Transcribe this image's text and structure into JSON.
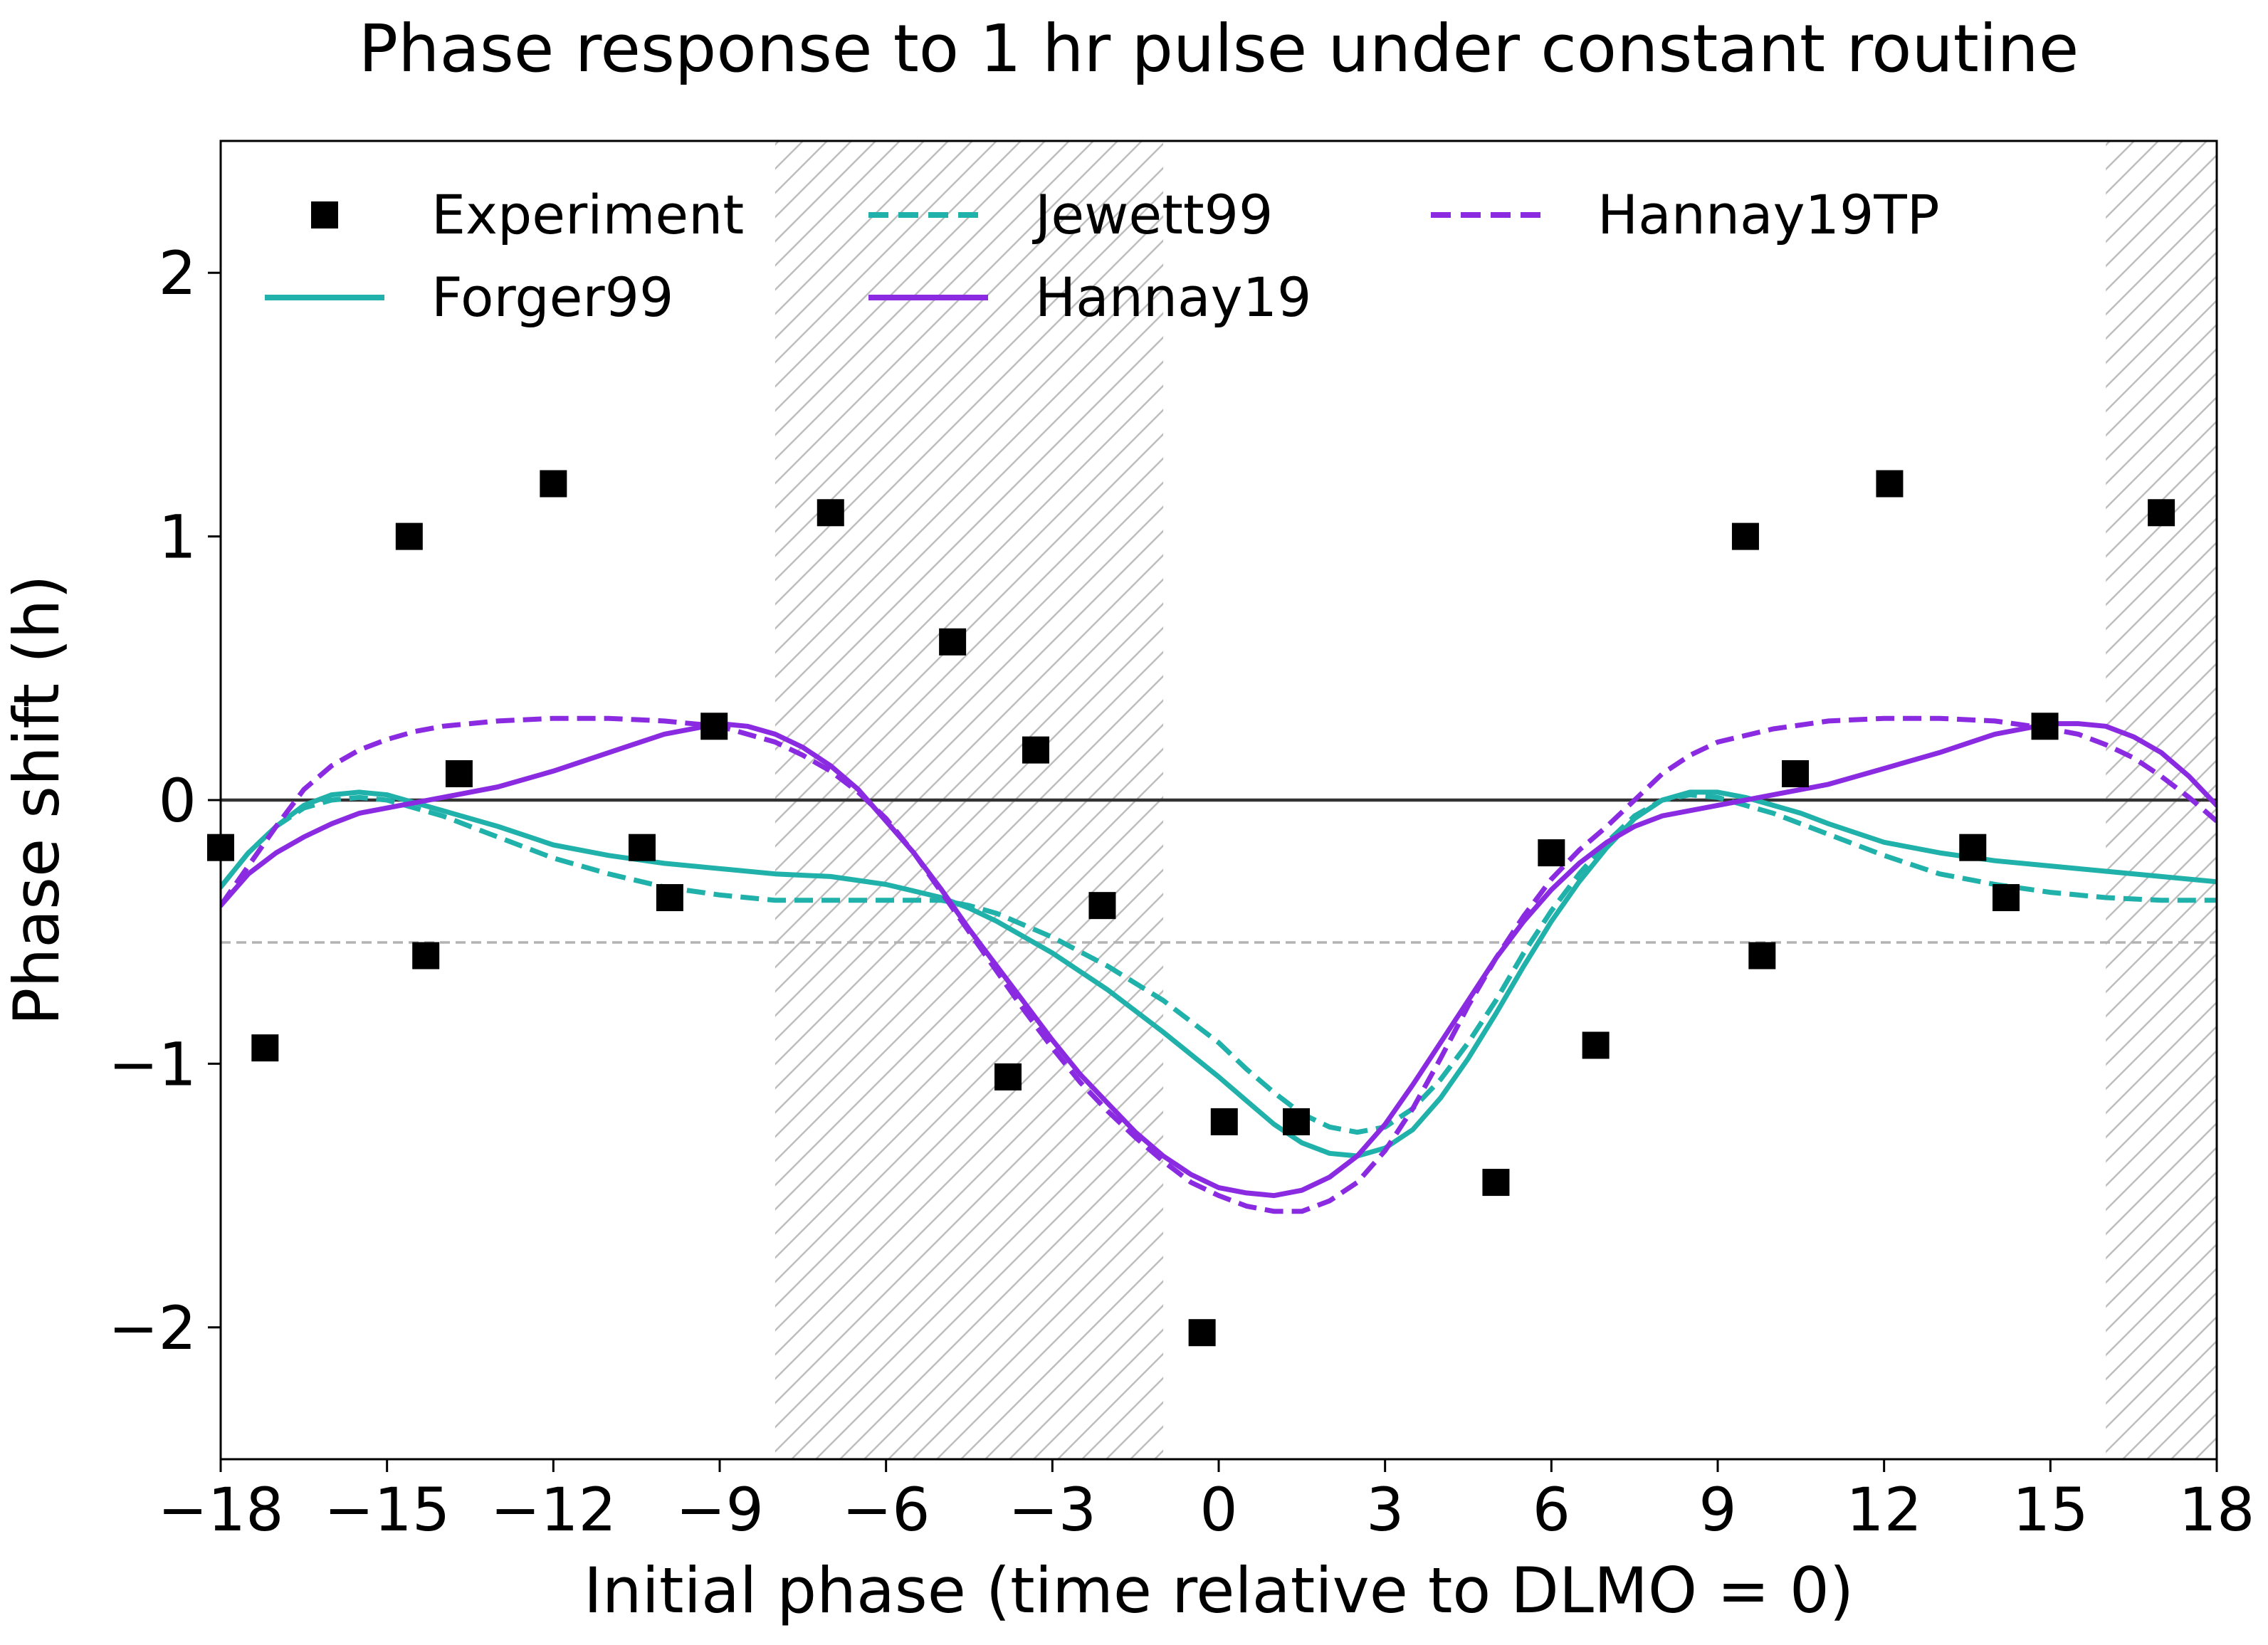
{
  "chart_data": {
    "type": "scatter",
    "title": "Phase response to 1 hr pulse under constant routine",
    "xlabel": "Initial phase (time relative to DLMO = 0)",
    "ylabel": "Phase shift (h)",
    "xlim": [
      -18,
      18
    ],
    "ylim": [
      -2.5,
      2.5
    ],
    "xticks": [
      -18,
      -15,
      -12,
      -9,
      -6,
      -3,
      0,
      3,
      6,
      9,
      12,
      15,
      18
    ],
    "yticks": [
      -2,
      -1,
      0,
      1,
      2
    ],
    "x_tick_labels": [
      "−18",
      "−15",
      "−12",
      "−9",
      "−6",
      "−3",
      "0",
      "3",
      "6",
      "9",
      "12",
      "15",
      "18"
    ],
    "y_tick_labels": [
      "−2",
      "−1",
      "0",
      "1",
      "2"
    ],
    "grid": false,
    "legend_position": "top",
    "reference_lines": [
      {
        "y": 0,
        "color": "#333333",
        "style": "solid"
      },
      {
        "y": -0.54,
        "color": "#b3b3b3",
        "style": "dashed"
      }
    ],
    "shaded_regions": [
      {
        "x0": -8,
        "x1": -1,
        "pattern": "hatch"
      },
      {
        "x0": 16,
        "x1": 18,
        "pattern": "hatch"
      }
    ],
    "series": [
      {
        "name": "Experiment",
        "kind": "scatter",
        "color": "#000000",
        "marker": "square",
        "points": [
          [
            -18.0,
            -0.18
          ],
          [
            -17.2,
            -0.94
          ],
          [
            -14.6,
            1.0
          ],
          [
            -14.3,
            -0.59
          ],
          [
            -13.7,
            0.1
          ],
          [
            -12.0,
            1.2
          ],
          [
            -10.4,
            -0.18
          ],
          [
            -9.9,
            -0.37
          ],
          [
            -9.1,
            0.28
          ],
          [
            -7.0,
            1.09
          ],
          [
            -4.8,
            0.6
          ],
          [
            -3.8,
            -1.05
          ],
          [
            -3.3,
            0.19
          ],
          [
            -2.1,
            -0.4
          ],
          [
            -0.3,
            -2.02
          ],
          [
            0.1,
            -1.22
          ],
          [
            1.4,
            -1.22
          ],
          [
            5.0,
            -1.45
          ],
          [
            6.0,
            -0.2
          ],
          [
            6.8,
            -0.93
          ],
          [
            9.5,
            1.0
          ],
          [
            9.8,
            -0.59
          ],
          [
            10.4,
            0.1
          ],
          [
            12.1,
            1.2
          ],
          [
            13.6,
            -0.18
          ],
          [
            14.2,
            -0.37
          ],
          [
            14.9,
            0.28
          ],
          [
            17.0,
            1.09
          ]
        ]
      },
      {
        "name": "Forger99",
        "kind": "line",
        "color": "#20b2aa",
        "dash": "solid",
        "points": [
          [
            -18,
            -0.33
          ],
          [
            -17.5,
            -0.2
          ],
          [
            -17,
            -0.1
          ],
          [
            -16.5,
            -0.02
          ],
          [
            -16,
            0.02
          ],
          [
            -15.5,
            0.03
          ],
          [
            -15,
            0.02
          ],
          [
            -14.5,
            -0.01
          ],
          [
            -14,
            -0.04
          ],
          [
            -13,
            -0.1
          ],
          [
            -12,
            -0.17
          ],
          [
            -11,
            -0.21
          ],
          [
            -10,
            -0.24
          ],
          [
            -9,
            -0.26
          ],
          [
            -8,
            -0.28
          ],
          [
            -7,
            -0.29
          ],
          [
            -6,
            -0.32
          ],
          [
            -5,
            -0.37
          ],
          [
            -4.5,
            -0.41
          ],
          [
            -4,
            -0.46
          ],
          [
            -3,
            -0.58
          ],
          [
            -2,
            -0.72
          ],
          [
            -1,
            -0.88
          ],
          [
            0,
            -1.05
          ],
          [
            0.5,
            -1.14
          ],
          [
            1,
            -1.23
          ],
          [
            1.5,
            -1.3
          ],
          [
            2,
            -1.34
          ],
          [
            2.5,
            -1.35
          ],
          [
            3,
            -1.32
          ],
          [
            3.5,
            -1.25
          ],
          [
            4,
            -1.13
          ],
          [
            4.5,
            -0.98
          ],
          [
            5,
            -0.81
          ],
          [
            5.5,
            -0.63
          ],
          [
            6,
            -0.46
          ],
          [
            6.5,
            -0.31
          ],
          [
            7,
            -0.18
          ],
          [
            7.5,
            -0.07
          ],
          [
            8,
            0.0
          ],
          [
            8.5,
            0.03
          ],
          [
            9,
            0.03
          ],
          [
            9.5,
            0.01
          ],
          [
            10,
            -0.02
          ],
          [
            10.5,
            -0.05
          ],
          [
            11,
            -0.09
          ],
          [
            12,
            -0.16
          ],
          [
            13,
            -0.2
          ],
          [
            14,
            -0.23
          ],
          [
            15,
            -0.25
          ],
          [
            16,
            -0.27
          ],
          [
            17,
            -0.29
          ],
          [
            18,
            -0.31
          ]
        ]
      },
      {
        "name": "Jewett99",
        "kind": "line",
        "color": "#20b2aa",
        "dash": "dashed",
        "points": [
          [
            -18,
            -0.33
          ],
          [
            -17.5,
            -0.2
          ],
          [
            -17,
            -0.1
          ],
          [
            -16.5,
            -0.03
          ],
          [
            -16,
            0.0
          ],
          [
            -15.5,
            0.01
          ],
          [
            -15,
            0.0
          ],
          [
            -14.5,
            -0.03
          ],
          [
            -14,
            -0.06
          ],
          [
            -13,
            -0.14
          ],
          [
            -12,
            -0.22
          ],
          [
            -11,
            -0.28
          ],
          [
            -10,
            -0.33
          ],
          [
            -9,
            -0.36
          ],
          [
            -8,
            -0.38
          ],
          [
            -7,
            -0.38
          ],
          [
            -6,
            -0.38
          ],
          [
            -5,
            -0.38
          ],
          [
            -4.5,
            -0.4
          ],
          [
            -4,
            -0.43
          ],
          [
            -3,
            -0.52
          ],
          [
            -2,
            -0.63
          ],
          [
            -1,
            -0.76
          ],
          [
            0,
            -0.92
          ],
          [
            0.5,
            -1.02
          ],
          [
            1,
            -1.11
          ],
          [
            1.5,
            -1.19
          ],
          [
            2,
            -1.24
          ],
          [
            2.5,
            -1.26
          ],
          [
            3,
            -1.24
          ],
          [
            3.5,
            -1.17
          ],
          [
            4,
            -1.06
          ],
          [
            4.5,
            -0.92
          ],
          [
            5,
            -0.76
          ],
          [
            5.5,
            -0.58
          ],
          [
            6,
            -0.42
          ],
          [
            6.5,
            -0.28
          ],
          [
            7,
            -0.16
          ],
          [
            7.5,
            -0.06
          ],
          [
            8,
            0.0
          ],
          [
            8.5,
            0.02
          ],
          [
            9,
            0.01
          ],
          [
            9.5,
            -0.02
          ],
          [
            10,
            -0.05
          ],
          [
            10.5,
            -0.09
          ],
          [
            11,
            -0.13
          ],
          [
            12,
            -0.21
          ],
          [
            13,
            -0.28
          ],
          [
            14,
            -0.32
          ],
          [
            15,
            -0.35
          ],
          [
            16,
            -0.37
          ],
          [
            17,
            -0.38
          ],
          [
            18,
            -0.38
          ]
        ]
      },
      {
        "name": "Hannay19",
        "kind": "line",
        "color": "#8a2be2",
        "dash": "solid",
        "points": [
          [
            -18,
            -0.4
          ],
          [
            -17.5,
            -0.28
          ],
          [
            -17,
            -0.2
          ],
          [
            -16.5,
            -0.14
          ],
          [
            -16,
            -0.09
          ],
          [
            -15.5,
            -0.05
          ],
          [
            -15,
            -0.03
          ],
          [
            -14.5,
            -0.01
          ],
          [
            -14,
            0.01
          ],
          [
            -13,
            0.05
          ],
          [
            -12,
            0.11
          ],
          [
            -11,
            0.18
          ],
          [
            -10,
            0.25
          ],
          [
            -9,
            0.29
          ],
          [
            -8.5,
            0.28
          ],
          [
            -8,
            0.25
          ],
          [
            -7.5,
            0.2
          ],
          [
            -7,
            0.13
          ],
          [
            -6.5,
            0.04
          ],
          [
            -6,
            -0.08
          ],
          [
            -5.5,
            -0.2
          ],
          [
            -5,
            -0.34
          ],
          [
            -4.5,
            -0.49
          ],
          [
            -4,
            -0.63
          ],
          [
            -3.5,
            -0.77
          ],
          [
            -3,
            -0.91
          ],
          [
            -2.5,
            -1.04
          ],
          [
            -2,
            -1.15
          ],
          [
            -1.5,
            -1.26
          ],
          [
            -1,
            -1.35
          ],
          [
            -0.5,
            -1.42
          ],
          [
            0,
            -1.47
          ],
          [
            0.5,
            -1.49
          ],
          [
            1,
            -1.5
          ],
          [
            1.5,
            -1.48
          ],
          [
            2,
            -1.43
          ],
          [
            2.5,
            -1.35
          ],
          [
            3,
            -1.23
          ],
          [
            3.5,
            -1.08
          ],
          [
            4,
            -0.92
          ],
          [
            4.5,
            -0.76
          ],
          [
            5,
            -0.6
          ],
          [
            5.5,
            -0.46
          ],
          [
            6,
            -0.34
          ],
          [
            6.5,
            -0.24
          ],
          [
            7,
            -0.16
          ],
          [
            7.5,
            -0.1
          ],
          [
            8,
            -0.06
          ],
          [
            8.5,
            -0.04
          ],
          [
            9,
            -0.02
          ],
          [
            10,
            0.02
          ],
          [
            11,
            0.06
          ],
          [
            12,
            0.12
          ],
          [
            13,
            0.18
          ],
          [
            14,
            0.25
          ],
          [
            15,
            0.29
          ],
          [
            15.5,
            0.29
          ],
          [
            16,
            0.28
          ],
          [
            16.5,
            0.24
          ],
          [
            17,
            0.18
          ],
          [
            17.5,
            0.09
          ],
          [
            18,
            -0.02
          ]
        ]
      },
      {
        "name": "Hannay19TP",
        "kind": "line",
        "color": "#8a2be2",
        "dash": "dashed",
        "points": [
          [
            -18,
            -0.4
          ],
          [
            -17.5,
            -0.25
          ],
          [
            -17,
            -0.1
          ],
          [
            -16.5,
            0.04
          ],
          [
            -16,
            0.13
          ],
          [
            -15.5,
            0.19
          ],
          [
            -15,
            0.23
          ],
          [
            -14.5,
            0.26
          ],
          [
            -14,
            0.28
          ],
          [
            -13,
            0.3
          ],
          [
            -12,
            0.31
          ],
          [
            -11,
            0.31
          ],
          [
            -10,
            0.3
          ],
          [
            -9,
            0.28
          ],
          [
            -8.5,
            0.25
          ],
          [
            -8,
            0.22
          ],
          [
            -7.5,
            0.17
          ],
          [
            -7,
            0.11
          ],
          [
            -6.5,
            0.03
          ],
          [
            -6,
            -0.07
          ],
          [
            -5.5,
            -0.2
          ],
          [
            -5,
            -0.35
          ],
          [
            -4.5,
            -0.5
          ],
          [
            -4,
            -0.65
          ],
          [
            -3.5,
            -0.8
          ],
          [
            -3,
            -0.94
          ],
          [
            -2.5,
            -1.07
          ],
          [
            -2,
            -1.18
          ],
          [
            -1.5,
            -1.28
          ],
          [
            -1,
            -1.37
          ],
          [
            -0.5,
            -1.45
          ],
          [
            0,
            -1.5
          ],
          [
            0.5,
            -1.54
          ],
          [
            1,
            -1.56
          ],
          [
            1.5,
            -1.56
          ],
          [
            2,
            -1.52
          ],
          [
            2.5,
            -1.45
          ],
          [
            3,
            -1.33
          ],
          [
            3.5,
            -1.17
          ],
          [
            4,
            -0.98
          ],
          [
            4.5,
            -0.78
          ],
          [
            5,
            -0.6
          ],
          [
            5.5,
            -0.44
          ],
          [
            6,
            -0.3
          ],
          [
            6.5,
            -0.19
          ],
          [
            7,
            -0.1
          ],
          [
            7.5,
            0.0
          ],
          [
            8,
            0.1
          ],
          [
            8.5,
            0.17
          ],
          [
            9,
            0.22
          ],
          [
            10,
            0.27
          ],
          [
            11,
            0.3
          ],
          [
            12,
            0.31
          ],
          [
            13,
            0.31
          ],
          [
            14,
            0.3
          ],
          [
            15,
            0.27
          ],
          [
            15.5,
            0.25
          ],
          [
            16,
            0.21
          ],
          [
            16.5,
            0.16
          ],
          [
            17,
            0.09
          ],
          [
            17.5,
            0.01
          ],
          [
            18,
            -0.08
          ]
        ]
      }
    ]
  }
}
